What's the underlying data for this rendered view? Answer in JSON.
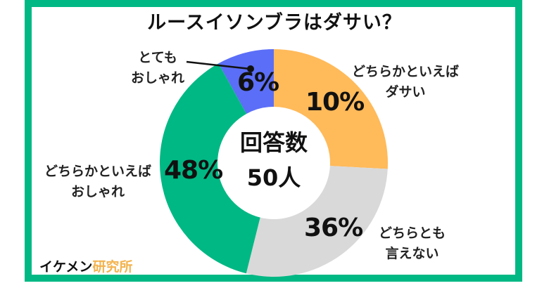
{
  "chart_data": {
    "type": "pie",
    "subtype": "donut",
    "title": "ルースイソンブラはダサい？",
    "center_text": [
      "回答数",
      "50人"
    ],
    "slices": [
      {
        "label": "とても おしゃれ",
        "value": 6,
        "color": "#5B6EF7"
      },
      {
        "label": "どちらかといえば ダサい",
        "value": 10,
        "color": "#FFBA5A"
      },
      {
        "label": "どちらとも 言えない",
        "value": 36,
        "color": "#D9D9D9"
      },
      {
        "label": "どちらかといえば おしゃれ",
        "value": 48,
        "color": "#00B884"
      }
    ],
    "legend_position": "labels-outside",
    "xlabel": "",
    "ylabel": ""
  },
  "title": "ルースイソンブラはダサい？",
  "center": {
    "line1": "回答数",
    "line2": "50人"
  },
  "labels": {
    "very_stylish": {
      "line1": "とても",
      "line2": "おしゃれ",
      "pct": "6%"
    },
    "somewhat_lame": {
      "line1": "どちらかといえば",
      "line2": "ダサい",
      "pct": "10%"
    },
    "neutral": {
      "line1": "どちらとも",
      "line2": "言えない",
      "pct": "36%"
    },
    "somewhat_stylish": {
      "line1": "どちらかといえば",
      "line2": "おしゃれ",
      "pct": "48%"
    }
  },
  "brand": {
    "part1": "イケメン",
    "part2": "研究所"
  },
  "colors": {
    "frame": "#00B884",
    "blue": "#5B6EF7",
    "orange": "#FFBA5A",
    "gray": "#D9D9D9",
    "green": "#00B884",
    "brand_accent": "#F3B34E"
  }
}
